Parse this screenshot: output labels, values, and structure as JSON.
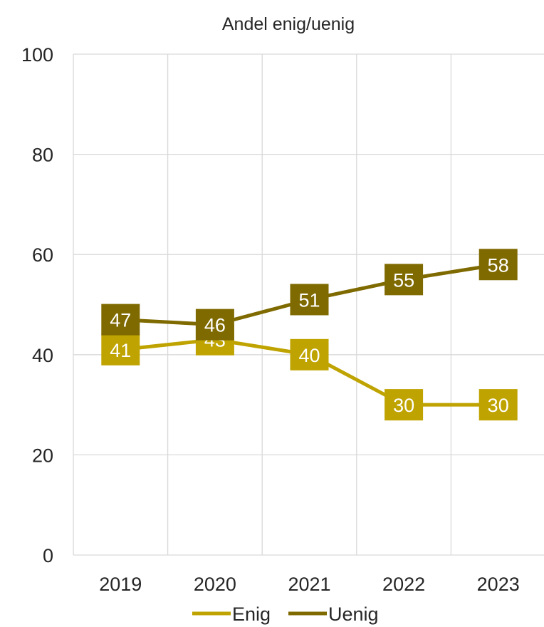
{
  "chart_data": {
    "type": "line",
    "title": "Andel enig/uenig",
    "categories": [
      "2019",
      "2020",
      "2021",
      "2022",
      "2023"
    ],
    "ylim": [
      0,
      100
    ],
    "yticks": [
      0,
      20,
      40,
      60,
      80,
      100
    ],
    "grid": true,
    "legend_position": "bottom",
    "series": [
      {
        "name": "Enig",
        "values": [
          41,
          43,
          40,
          30,
          30
        ],
        "color": "#bfa300"
      },
      {
        "name": "Uenig",
        "values": [
          47,
          46,
          51,
          55,
          58
        ],
        "color": "#7f6a00"
      }
    ]
  }
}
